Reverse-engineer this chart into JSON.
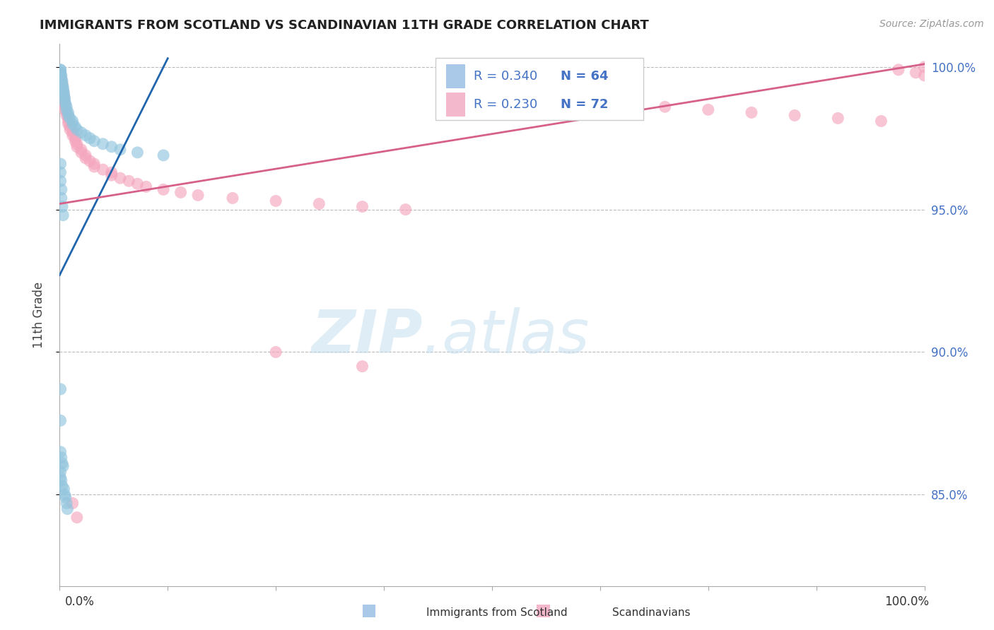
{
  "title": "IMMIGRANTS FROM SCOTLAND VS SCANDINAVIAN 11TH GRADE CORRELATION CHART",
  "source_text": "Source: ZipAtlas.com",
  "ylabel": "11th Grade",
  "xmin": 0.0,
  "xmax": 1.0,
  "ymin": 0.818,
  "ymax": 1.008,
  "ytick_labels": [
    "85.0%",
    "90.0%",
    "95.0%",
    "100.0%"
  ],
  "ytick_values": [
    0.85,
    0.9,
    0.95,
    1.0
  ],
  "blue_color": "#92c5de",
  "pink_color": "#f4a6be",
  "blue_line_color": "#2166ac",
  "pink_line_color": "#d6608a",
  "blue_trend_x": [
    0.0,
    0.125
  ],
  "blue_trend_y": [
    0.927,
    1.003
  ],
  "pink_trend_x": [
    0.0,
    1.0
  ],
  "pink_trend_y": [
    0.952,
    1.001
  ],
  "blue_x": [
    0.001,
    0.001,
    0.001,
    0.001,
    0.001,
    0.001,
    0.001,
    0.001,
    0.002,
    0.002,
    0.002,
    0.002,
    0.002,
    0.002,
    0.003,
    0.003,
    0.003,
    0.003,
    0.004,
    0.004,
    0.004,
    0.005,
    0.005,
    0.006,
    0.006,
    0.007,
    0.008,
    0.008,
    0.01,
    0.01,
    0.012,
    0.015,
    0.015,
    0.018,
    0.02,
    0.025,
    0.03,
    0.035,
    0.04,
    0.05,
    0.06,
    0.07,
    0.09,
    0.12,
    0.001,
    0.001,
    0.001,
    0.002,
    0.002,
    0.003,
    0.004,
    0.001,
    0.001,
    0.001,
    0.002,
    0.003,
    0.004,
    0.001,
    0.001,
    0.002,
    0.003,
    0.005,
    0.006,
    0.007,
    0.008,
    0.009
  ],
  "blue_y": [
    0.999,
    0.999,
    0.998,
    0.998,
    0.997,
    0.997,
    0.996,
    0.995,
    0.997,
    0.996,
    0.995,
    0.994,
    0.993,
    0.992,
    0.995,
    0.994,
    0.993,
    0.992,
    0.993,
    0.992,
    0.991,
    0.991,
    0.99,
    0.989,
    0.988,
    0.987,
    0.986,
    0.985,
    0.984,
    0.983,
    0.982,
    0.981,
    0.98,
    0.979,
    0.978,
    0.977,
    0.976,
    0.975,
    0.974,
    0.973,
    0.972,
    0.971,
    0.97,
    0.969,
    0.966,
    0.963,
    0.96,
    0.957,
    0.954,
    0.951,
    0.948,
    0.887,
    0.876,
    0.865,
    0.863,
    0.861,
    0.86,
    0.858,
    0.856,
    0.855,
    0.853,
    0.852,
    0.85,
    0.849,
    0.847,
    0.845
  ],
  "pink_x": [
    0.001,
    0.001,
    0.001,
    0.001,
    0.001,
    0.002,
    0.002,
    0.002,
    0.002,
    0.003,
    0.003,
    0.003,
    0.004,
    0.004,
    0.005,
    0.005,
    0.005,
    0.006,
    0.006,
    0.006,
    0.008,
    0.008,
    0.01,
    0.01,
    0.01,
    0.012,
    0.012,
    0.015,
    0.015,
    0.018,
    0.018,
    0.02,
    0.02,
    0.025,
    0.025,
    0.03,
    0.03,
    0.035,
    0.04,
    0.04,
    0.05,
    0.06,
    0.06,
    0.07,
    0.08,
    0.09,
    0.1,
    0.12,
    0.14,
    0.16,
    0.2,
    0.25,
    0.3,
    0.35,
    0.4,
    0.5,
    0.55,
    0.6,
    0.65,
    0.7,
    0.75,
    0.8,
    0.85,
    0.9,
    0.95,
    0.97,
    0.99,
    1.0,
    1.0,
    0.015,
    0.02,
    0.25,
    0.35
  ],
  "pink_y": [
    0.998,
    0.997,
    0.996,
    0.995,
    0.994,
    0.996,
    0.995,
    0.994,
    0.993,
    0.994,
    0.993,
    0.992,
    0.992,
    0.991,
    0.99,
    0.989,
    0.988,
    0.987,
    0.986,
    0.985,
    0.984,
    0.983,
    0.982,
    0.981,
    0.98,
    0.979,
    0.978,
    0.977,
    0.976,
    0.975,
    0.974,
    0.973,
    0.972,
    0.971,
    0.97,
    0.969,
    0.968,
    0.967,
    0.966,
    0.965,
    0.964,
    0.963,
    0.962,
    0.961,
    0.96,
    0.959,
    0.958,
    0.957,
    0.956,
    0.955,
    0.954,
    0.953,
    0.952,
    0.951,
    0.95,
    0.99,
    0.989,
    0.988,
    0.987,
    0.986,
    0.985,
    0.984,
    0.983,
    0.982,
    0.981,
    0.999,
    0.998,
    0.997,
    1.0,
    0.847,
    0.842,
    0.9,
    0.895
  ]
}
